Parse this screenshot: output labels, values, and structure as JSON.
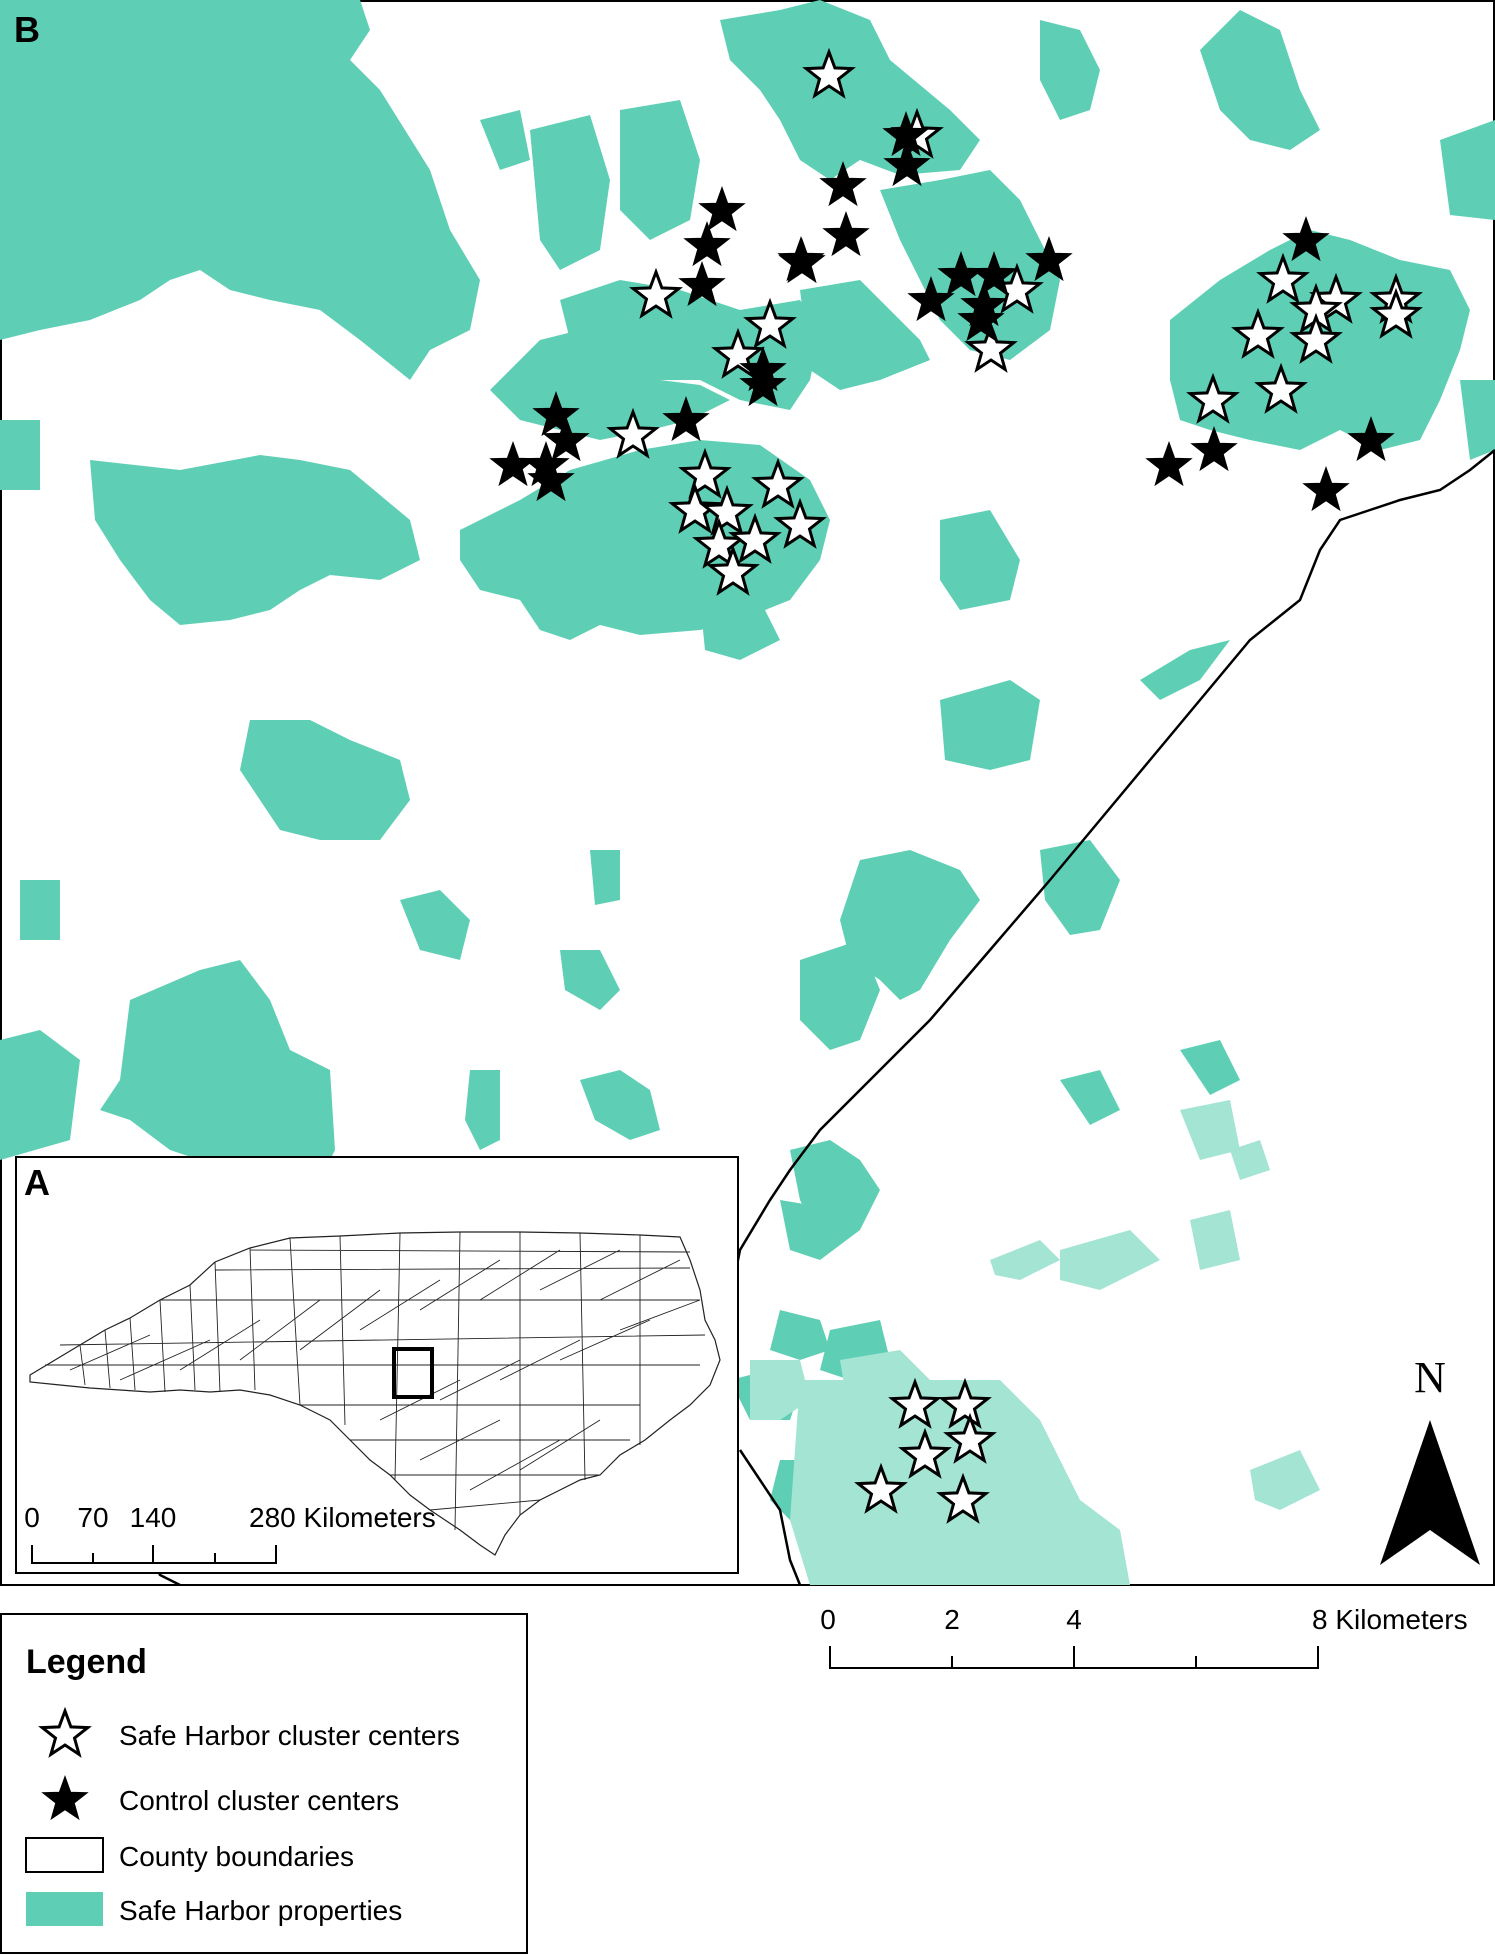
{
  "main_map": {
    "panel_label": "B",
    "north_label": "N",
    "scale_bar": {
      "ticks": [
        "0",
        "2",
        "4",
        "8 Kilometers"
      ]
    }
  },
  "inset_map": {
    "panel_label": "A",
    "scale_bar": {
      "ticks": [
        "0",
        "70",
        "140",
        "280 Kilometers"
      ]
    }
  },
  "legend": {
    "title": "Legend",
    "items": [
      {
        "symbol": "open-star-icon",
        "label": "Safe Harbor cluster centers"
      },
      {
        "symbol": "filled-star-icon",
        "label": "Control cluster centers"
      },
      {
        "symbol": "outline-box-icon",
        "label": "County boundaries"
      },
      {
        "symbol": "teal-box-icon",
        "label": "Safe Harbor properties"
      }
    ]
  },
  "colors": {
    "property_fill": "#5ecfb5",
    "property_fill_light": "#a3e4d3",
    "boundary": "#000000",
    "background": "#ffffff"
  }
}
